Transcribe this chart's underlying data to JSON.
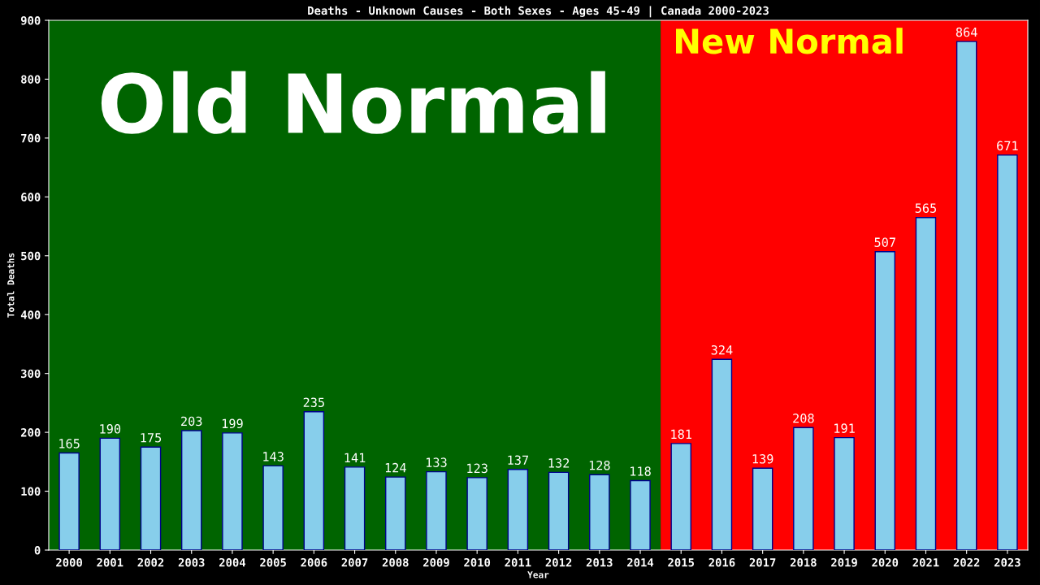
{
  "chart_data": {
    "type": "bar",
    "title": "Deaths - Unknown Causes - Both Sexes - Ages 45-49 | Canada 2000-2023",
    "xlabel": "Year",
    "ylabel": "Total Deaths",
    "categories": [
      "2000",
      "2001",
      "2002",
      "2003",
      "2004",
      "2005",
      "2006",
      "2007",
      "2008",
      "2009",
      "2010",
      "2011",
      "2012",
      "2013",
      "2014",
      "2015",
      "2016",
      "2017",
      "2018",
      "2019",
      "2020",
      "2021",
      "2022",
      "2023"
    ],
    "values": [
      165,
      190,
      175,
      203,
      199,
      143,
      235,
      141,
      124,
      133,
      123,
      137,
      132,
      128,
      118,
      181,
      324,
      139,
      208,
      191,
      507,
      565,
      864,
      671
    ],
    "color": "#87ceeb",
    "ylim": [
      0,
      900
    ],
    "yticks": [
      0,
      100,
      200,
      300,
      400,
      500,
      600,
      700,
      800,
      900
    ],
    "data_labels": true,
    "grid": false,
    "legend": false,
    "bands": [
      {
        "axis": "x",
        "from": "2000",
        "to": "2014",
        "label": "Old Normal",
        "color": "#006400"
      },
      {
        "axis": "x",
        "from": "2015",
        "to": "2023",
        "label": "New Normal",
        "color": "#ff0000"
      }
    ]
  }
}
